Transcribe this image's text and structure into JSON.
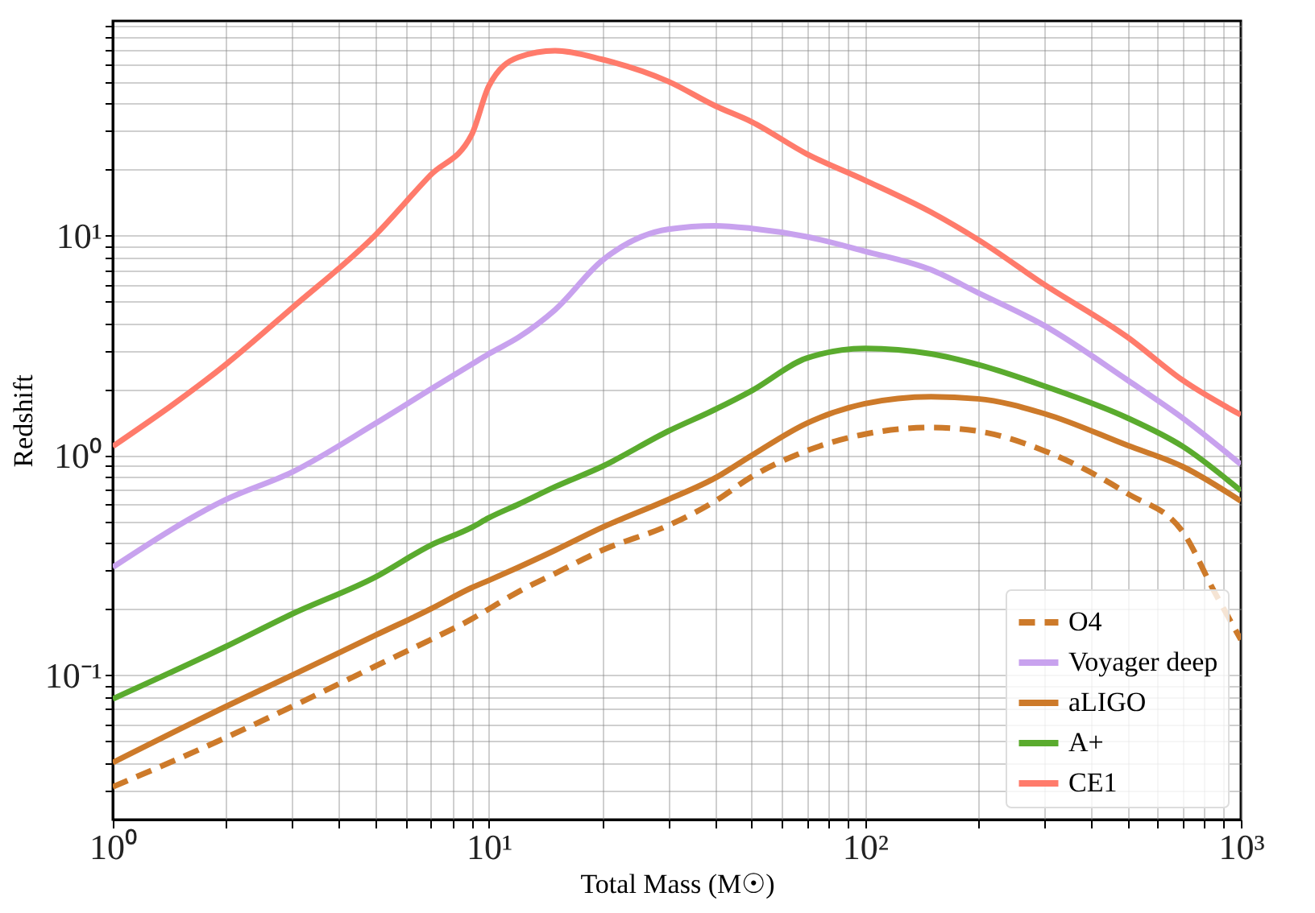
{
  "chart_data": {
    "type": "line",
    "xlabel": "Total Mass (M☉)",
    "ylabel": "Redshift",
    "log": "xy",
    "grid": true,
    "legend": "bottom right",
    "line_style": "solid",
    "marker": "none",
    "xlim": [
      1,
      1000
    ],
    "ylim": [
      0.022,
      95
    ],
    "xticks": [
      {
        "value": 1,
        "label": "10⁰"
      },
      {
        "value": 2,
        "label": null
      },
      {
        "value": 3,
        "label": null
      },
      {
        "value": 4,
        "label": null
      },
      {
        "value": 5,
        "label": null
      },
      {
        "value": 6,
        "label": null
      },
      {
        "value": 7,
        "label": null
      },
      {
        "value": 8,
        "label": null
      },
      {
        "value": 9,
        "label": null
      },
      {
        "value": 10,
        "label": "10¹"
      },
      {
        "value": 20,
        "label": null
      },
      {
        "value": 30,
        "label": null
      },
      {
        "value": 40,
        "label": null
      },
      {
        "value": 50,
        "label": null
      },
      {
        "value": 60,
        "label": null
      },
      {
        "value": 70,
        "label": null
      },
      {
        "value": 80,
        "label": null
      },
      {
        "value": 90,
        "label": null
      },
      {
        "value": 100,
        "label": "10²"
      },
      {
        "value": 200,
        "label": null
      },
      {
        "value": 300,
        "label": null
      },
      {
        "value": 400,
        "label": null
      },
      {
        "value": 500,
        "label": null
      },
      {
        "value": 600,
        "label": null
      },
      {
        "value": 700,
        "label": null
      },
      {
        "value": 800,
        "label": null
      },
      {
        "value": 900,
        "label": null
      },
      {
        "value": 1000,
        "label": "10³"
      }
    ],
    "yticks": [
      {
        "value": 0.03,
        "label": null
      },
      {
        "value": 0.04,
        "label": null
      },
      {
        "value": 0.05,
        "label": null
      },
      {
        "value": 0.06,
        "label": null
      },
      {
        "value": 0.07,
        "label": null
      },
      {
        "value": 0.08,
        "label": null
      },
      {
        "value": 0.09,
        "label": null
      },
      {
        "value": 0.1,
        "label": "10⁻¹"
      },
      {
        "value": 0.2,
        "label": null
      },
      {
        "value": 0.3,
        "label": null
      },
      {
        "value": 0.4,
        "label": null
      },
      {
        "value": 0.5,
        "label": null
      },
      {
        "value": 0.6,
        "label": null
      },
      {
        "value": 0.7,
        "label": null
      },
      {
        "value": 0.8,
        "label": null
      },
      {
        "value": 0.9,
        "label": null
      },
      {
        "value": 1,
        "label": "10⁰"
      },
      {
        "value": 2,
        "label": null
      },
      {
        "value": 3,
        "label": null
      },
      {
        "value": 4,
        "label": null
      },
      {
        "value": 5,
        "label": null
      },
      {
        "value": 6,
        "label": null
      },
      {
        "value": 7,
        "label": null
      },
      {
        "value": 8,
        "label": null
      },
      {
        "value": 9,
        "label": null
      },
      {
        "value": 10,
        "label": "10¹"
      },
      {
        "value": 20,
        "label": null
      },
      {
        "value": 30,
        "label": null
      },
      {
        "value": 40,
        "label": null
      },
      {
        "value": 50,
        "label": null
      },
      {
        "value": 60,
        "label": null
      },
      {
        "value": 70,
        "label": null
      },
      {
        "value": 80,
        "label": null
      },
      {
        "value": 90,
        "label": null
      }
    ],
    "x": [
      1,
      2,
      3,
      5,
      7,
      9,
      10,
      12,
      15,
      20,
      30,
      40,
      50,
      70,
      100,
      150,
      200,
      300,
      500,
      700,
      1000
    ],
    "series": [
      {
        "name": "O4",
        "color": "#cd7a2a",
        "line_style": "dashed",
        "x": [
          1,
          2,
          3,
          5,
          7,
          9,
          10,
          12,
          15,
          20,
          30,
          40,
          50,
          70,
          100,
          150,
          200,
          300,
          500,
          700,
          850,
          1000
        ],
        "values": [
          0.031,
          0.052,
          0.072,
          0.11,
          0.145,
          0.18,
          0.2,
          0.24,
          0.29,
          0.37,
          0.48,
          0.62,
          0.8,
          1.05,
          1.25,
          1.34,
          1.29,
          1.05,
          0.67,
          0.45,
          0.24,
          0.145
        ]
      },
      {
        "name": "Voyager deep",
        "color": "#c8a2ee",
        "values": [
          0.31,
          0.63,
          0.84,
          1.4,
          2.0,
          2.6,
          2.9,
          3.45,
          4.6,
          7.7,
          10.7,
          11.1,
          10.8,
          9.9,
          8.5,
          7.0,
          5.5,
          3.9,
          2.2,
          1.48,
          0.91
        ]
      },
      {
        "name": "aLIGO",
        "color": "#cd7a2a",
        "values": [
          0.04,
          0.072,
          0.1,
          0.152,
          0.2,
          0.25,
          0.27,
          0.31,
          0.37,
          0.47,
          0.63,
          0.79,
          1.0,
          1.4,
          1.72,
          1.85,
          1.81,
          1.55,
          1.11,
          0.89,
          0.62
        ]
      },
      {
        "name": "A+",
        "color": "#5aab2e",
        "values": [
          0.078,
          0.135,
          0.19,
          0.28,
          0.39,
          0.47,
          0.52,
          0.6,
          0.72,
          0.89,
          1.29,
          1.62,
          1.97,
          2.77,
          3.07,
          2.9,
          2.59,
          2.07,
          1.48,
          1.1,
          0.69
        ]
      },
      {
        "name": "CE1",
        "color": "#ff7b6b",
        "values": [
          1.1,
          2.6,
          4.7,
          10.1,
          18.9,
          28.8,
          48,
          65,
          69.5,
          63.5,
          50.4,
          39,
          33,
          23.6,
          17.9,
          12.8,
          9.6,
          6.0,
          3.45,
          2.2,
          1.53
        ]
      }
    ]
  }
}
